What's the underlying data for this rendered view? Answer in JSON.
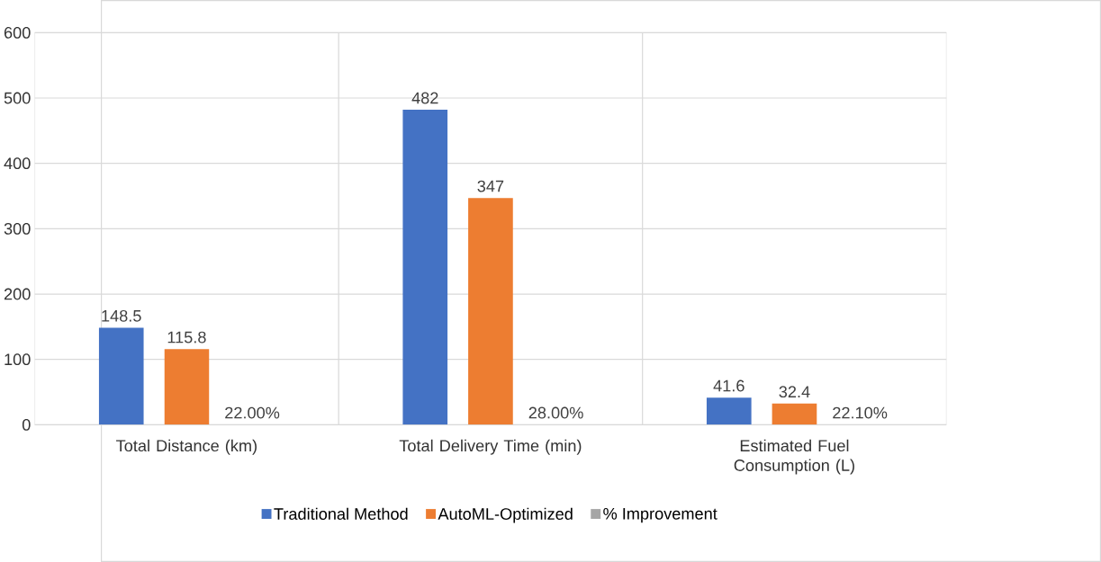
{
  "chart_data": {
    "type": "bar",
    "categories": [
      "Total Distance (km)",
      "Total Delivery Time (min)",
      "Estimated Fuel Consumption (L)"
    ],
    "series": [
      {
        "name": "Traditional Method",
        "color": "#4472c4",
        "values": [
          148.5,
          482,
          41.6
        ],
        "value_labels": [
          "148.5",
          "482",
          "41.6"
        ]
      },
      {
        "name": "AutoML-Optimized",
        "color": "#ed7d31",
        "values": [
          115.8,
          347,
          32.4
        ],
        "value_labels": [
          "115.8",
          "347",
          "32.4"
        ]
      },
      {
        "name": "% Improvement",
        "color": "#a5a5a5",
        "values": [
          0.22,
          0.28,
          0.221
        ],
        "value_labels": [
          "22.00%",
          "28.00%",
          "22.10%"
        ]
      }
    ],
    "ylim": [
      0,
      600
    ],
    "yticks": [
      0,
      100,
      200,
      300,
      400,
      500,
      600
    ],
    "grid": true,
    "legend": "bottom"
  }
}
